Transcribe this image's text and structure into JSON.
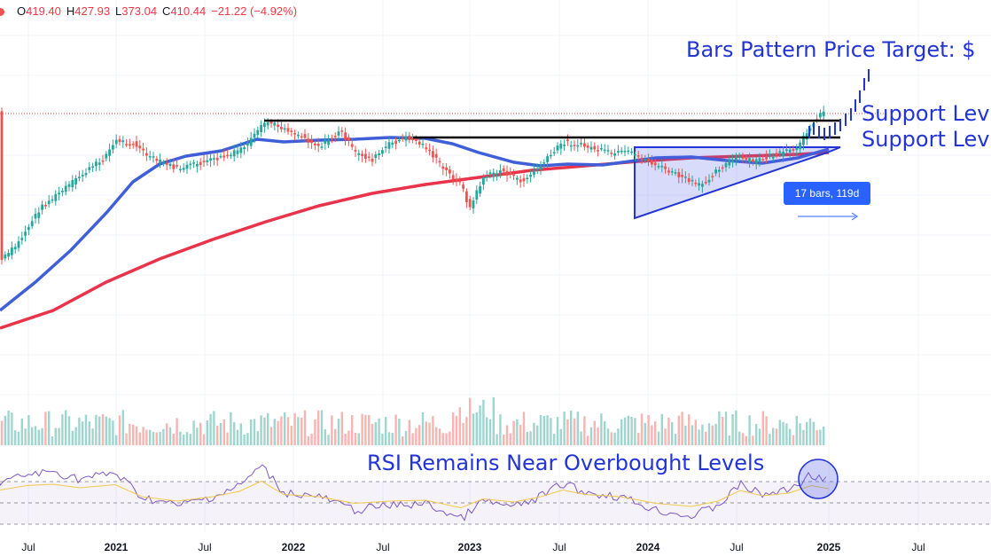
{
  "ohlc": {
    "open_key": "O",
    "open": "419.40",
    "high_key": "H",
    "high": "427.93",
    "low_key": "L",
    "low": "373.04",
    "close_key": "C",
    "close": "410.44",
    "change": "−21.22 (−4.92%)"
  },
  "annotations": {
    "target": "Bars Pattern Price Target: $",
    "support_upper": "Support Lev",
    "support_lower": "Support Lev",
    "rsi_note": "RSI Remains Near Overbought Levels",
    "measure": "17 bars, 119d"
  },
  "x_axis": {
    "labels": [
      "Jul",
      "2021",
      "Jul",
      "2022",
      "Jul",
      "2023",
      "Jul",
      "2024",
      "Jul",
      "2025",
      "Jul"
    ],
    "years": [
      "2021",
      "2022",
      "2023",
      "2024",
      "2025"
    ]
  },
  "colors": {
    "up": "#26a69a",
    "down": "#ef5350",
    "ma50": "#3f5fd9",
    "ma200": "#e8334a",
    "annotation": "#2334d6",
    "rsi": "#7e57c2",
    "rsi_ma": "#f2c94c"
  },
  "chart_data": {
    "type": "candlestick",
    "timeframe": "weekly",
    "x_range": [
      "2020-06",
      "2025-08"
    ],
    "price_series_note": "weekly closes approximated",
    "series": [
      {
        "name": "",
        "kind": "price"
      },
      {
        "name": "",
        "kind": "moving-average-50"
      },
      {
        "name": "",
        "kind": "moving-average-200"
      }
    ],
    "horizontal_levels": [
      "upper support",
      "lower support"
    ],
    "pattern": "ascending triangle",
    "rsi_bands": [
      30,
      70
    ],
    "grid": true
  }
}
